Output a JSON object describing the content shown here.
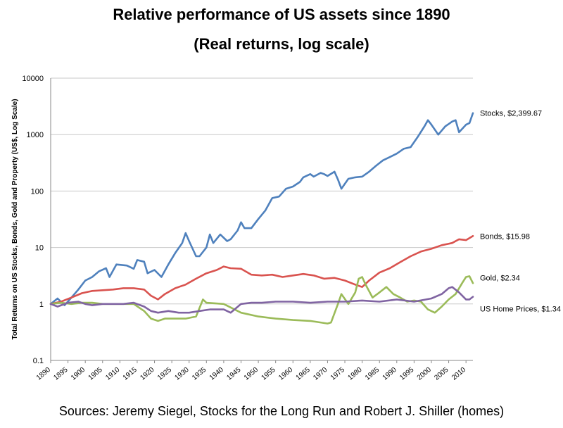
{
  "chart_data": {
    "type": "line",
    "title": "Relative performance of US assets since 1890",
    "subtitle": "(Real returns, log scale)",
    "ylabel": "Total Returns on US Stocks, Bonds, Gold and Property (US$, Log Scale)",
    "xlabel": "",
    "yscale": "log",
    "ylim": [
      0.1,
      10000
    ],
    "xlim": [
      1890,
      2012
    ],
    "y_ticks": [
      "0.1",
      "1",
      "10",
      "100",
      "1000",
      "10000"
    ],
    "x_ticks": [
      "1890",
      "1895",
      "1900",
      "1905",
      "1910",
      "1915",
      "1920",
      "1925",
      "1930",
      "1935",
      "1940",
      "1945",
      "1950",
      "1955",
      "1960",
      "1965",
      "1970",
      "1975",
      "1980",
      "1985",
      "1990",
      "1995",
      "2000",
      "2005",
      "2010"
    ],
    "grid": "horizontal",
    "source": "Sources: Jeremy Siegel, Stocks for the Long Run and Robert J. Shiller (homes)",
    "series": [
      {
        "name": "Stocks",
        "end_label": "Stocks, $2,399.67",
        "color": "#4f81bd",
        "x": [
          1890,
          1892,
          1894,
          1896,
          1898,
          1900,
          1902,
          1904,
          1906,
          1907,
          1909,
          1912,
          1914,
          1915,
          1917,
          1918,
          1920,
          1922,
          1924,
          1926,
          1928,
          1929,
          1930,
          1932,
          1933,
          1935,
          1936,
          1937,
          1939,
          1941,
          1942,
          1944,
          1945,
          1946,
          1948,
          1950,
          1952,
          1954,
          1956,
          1958,
          1960,
          1962,
          1963,
          1965,
          1966,
          1968,
          1969,
          1970,
          1972,
          1973,
          1974,
          1976,
          1978,
          1980,
          1982,
          1984,
          1986,
          1988,
          1990,
          1992,
          1994,
          1996,
          1998,
          1999,
          2000,
          2002,
          2004,
          2006,
          2007,
          2008,
          2010,
          2011,
          2012
        ],
        "y": [
          1.0,
          1.25,
          0.95,
          1.3,
          1.8,
          2.6,
          3.0,
          3.8,
          4.3,
          3.0,
          5.0,
          4.8,
          4.2,
          6.0,
          5.6,
          3.5,
          4.0,
          3.0,
          5.0,
          8.0,
          12.0,
          18.0,
          13.0,
          7.0,
          7.0,
          10.0,
          17.0,
          12.0,
          17.0,
          13.0,
          14.0,
          20.0,
          28.0,
          22.0,
          22.0,
          32.0,
          45.0,
          75.0,
          80.0,
          110.0,
          120.0,
          145.0,
          175.0,
          200.0,
          180.0,
          210.0,
          200.0,
          185.0,
          220.0,
          160.0,
          110.0,
          165.0,
          175.0,
          180.0,
          220.0,
          280.0,
          350.0,
          400.0,
          460.0,
          560.0,
          600.0,
          900.0,
          1400.0,
          1800.0,
          1500.0,
          1000.0,
          1400.0,
          1700.0,
          1800.0,
          1100.0,
          1500.0,
          1600.0,
          2399.67
        ]
      },
      {
        "name": "Bonds",
        "end_label": "Bonds, $15.98",
        "color": "#d9534f",
        "x": [
          1890,
          1893,
          1896,
          1899,
          1902,
          1905,
          1908,
          1911,
          1914,
          1917,
          1919,
          1921,
          1923,
          1926,
          1929,
          1932,
          1935,
          1938,
          1940,
          1942,
          1945,
          1948,
          1951,
          1954,
          1957,
          1960,
          1963,
          1966,
          1969,
          1972,
          1975,
          1978,
          1980,
          1982,
          1985,
          1988,
          1991,
          1994,
          1997,
          2000,
          2003,
          2006,
          2008,
          2010,
          2012
        ],
        "y": [
          1.0,
          1.1,
          1.3,
          1.55,
          1.7,
          1.75,
          1.8,
          1.9,
          1.9,
          1.8,
          1.4,
          1.2,
          1.5,
          1.9,
          2.2,
          2.8,
          3.5,
          4.0,
          4.6,
          4.3,
          4.2,
          3.3,
          3.2,
          3.3,
          3.0,
          3.2,
          3.4,
          3.2,
          2.8,
          2.9,
          2.6,
          2.2,
          2.0,
          2.6,
          3.6,
          4.3,
          5.5,
          7.0,
          8.5,
          9.5,
          11.0,
          12.0,
          14.0,
          13.5,
          15.98
        ]
      },
      {
        "name": "Gold",
        "end_label": "Gold, $2.34",
        "color": "#9bbb59",
        "x": [
          1890,
          1893,
          1896,
          1899,
          1902,
          1905,
          1908,
          1911,
          1914,
          1917,
          1919,
          1921,
          1923,
          1926,
          1929,
          1932,
          1934,
          1935,
          1940,
          1945,
          1950,
          1955,
          1960,
          1965,
          1970,
          1971,
          1973,
          1974,
          1976,
          1978,
          1979,
          1980,
          1981,
          1983,
          1985,
          1987,
          1989,
          1991,
          1993,
          1995,
          1997,
          1999,
          2001,
          2003,
          2005,
          2007,
          2009,
          2010,
          2011,
          2012
        ],
        "y": [
          1.0,
          1.05,
          1.0,
          1.05,
          1.05,
          1.0,
          1.0,
          1.0,
          1.0,
          0.75,
          0.55,
          0.5,
          0.55,
          0.55,
          0.55,
          0.6,
          1.2,
          1.05,
          1.0,
          0.7,
          0.6,
          0.55,
          0.52,
          0.5,
          0.45,
          0.47,
          1.0,
          1.5,
          1.0,
          1.6,
          2.8,
          3.0,
          2.2,
          1.3,
          1.6,
          2.0,
          1.5,
          1.3,
          1.1,
          1.15,
          1.1,
          0.8,
          0.7,
          0.9,
          1.2,
          1.5,
          2.4,
          3.0,
          3.1,
          2.34
        ]
      },
      {
        "name": "US Home Prices",
        "end_label": "US Home Prices, $1.34",
        "color": "#8064a2",
        "x": [
          1890,
          1892,
          1895,
          1898,
          1900,
          1902,
          1905,
          1908,
          1911,
          1914,
          1917,
          1919,
          1921,
          1924,
          1927,
          1930,
          1933,
          1936,
          1940,
          1942,
          1945,
          1948,
          1951,
          1955,
          1960,
          1965,
          1970,
          1975,
          1980,
          1985,
          1990,
          1995,
          2000,
          2003,
          2005,
          2006,
          2008,
          2010,
          2011,
          2012
        ],
        "y": [
          1.0,
          0.9,
          1.05,
          1.1,
          1.0,
          0.95,
          1.0,
          1.0,
          1.0,
          1.05,
          0.9,
          0.75,
          0.7,
          0.75,
          0.7,
          0.7,
          0.75,
          0.8,
          0.8,
          0.7,
          1.0,
          1.05,
          1.05,
          1.1,
          1.1,
          1.05,
          1.1,
          1.1,
          1.15,
          1.1,
          1.2,
          1.1,
          1.25,
          1.5,
          1.9,
          2.0,
          1.6,
          1.2,
          1.2,
          1.34
        ]
      }
    ]
  }
}
